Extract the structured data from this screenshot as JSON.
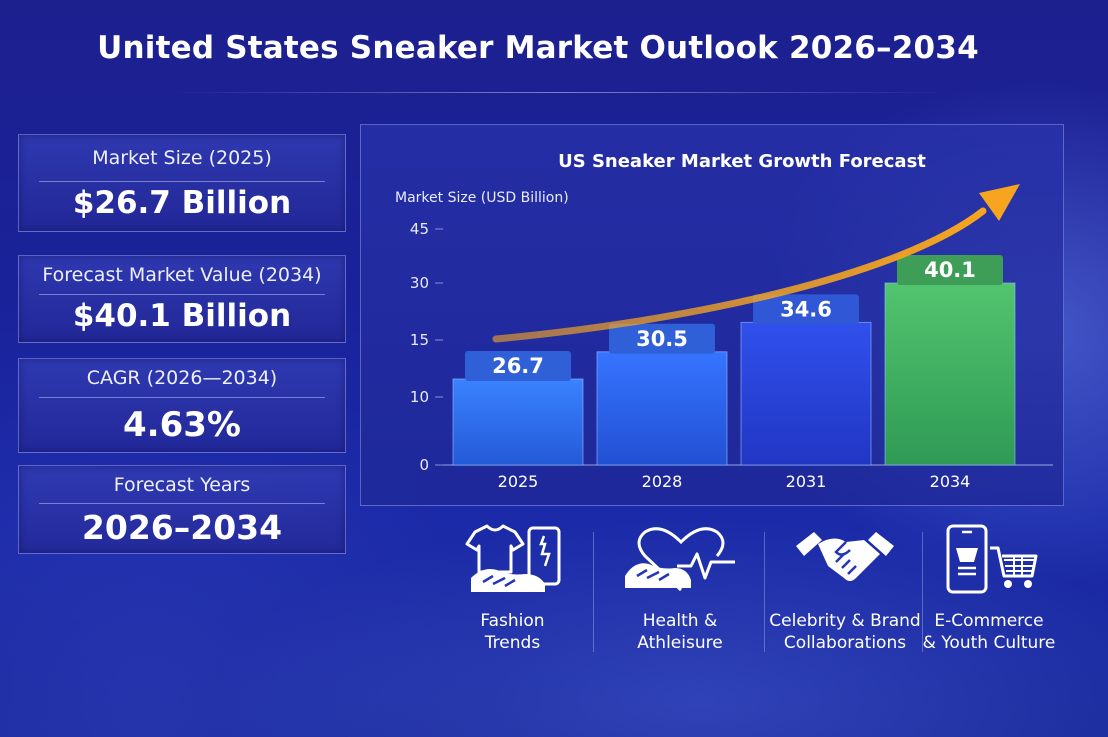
{
  "title": "United States Sneaker Market Outlook 2026–2034",
  "kpis": [
    {
      "label": "Market Size (2025)",
      "value": "$26.7 Billion"
    },
    {
      "label": "Forecast Market Value (2034)",
      "value": "$40.1 Billion"
    },
    {
      "label": "CAGR (2026—2034)",
      "value": "4.63%"
    },
    {
      "label": "Forecast Years",
      "value": "2026–2034"
    }
  ],
  "chart_data": {
    "type": "bar",
    "title": "US Sneaker Market Growth Forecast",
    "ylabel": "Market Size (USD Billion)",
    "xlabel": "",
    "categories": [
      "2025",
      "2028",
      "2031",
      "2034"
    ],
    "values": [
      26.7,
      30.5,
      34.6,
      40.1
    ],
    "data_labels": [
      "26.7",
      "30.5",
      "34.6",
      "40.1"
    ],
    "y_ticks": [
      "0",
      "10",
      "15",
      "30",
      "45"
    ],
    "grid": false,
    "legend": "none",
    "colors": {
      "bars": [
        "#2f6df0",
        "#2f60ee",
        "#2c45df",
        "#3fae62"
      ],
      "labels": [
        "#3060d8",
        "#3060d8",
        "#3058d6",
        "#3e9e58"
      ],
      "arrow": "#f5a623"
    }
  },
  "drivers": [
    {
      "icon": "shirt-sneaker-icon",
      "lines": [
        "Fashion",
        "Trends"
      ]
    },
    {
      "icon": "heart-sneaker-icon",
      "lines": [
        "Health &",
        "Athleisure"
      ]
    },
    {
      "icon": "handshake-icon",
      "lines": [
        "Celebrity & Brand",
        "Collaborations"
      ]
    },
    {
      "icon": "phone-cart-icon",
      "lines": [
        "E-Commerce",
        "& Youth Culture"
      ]
    }
  ]
}
